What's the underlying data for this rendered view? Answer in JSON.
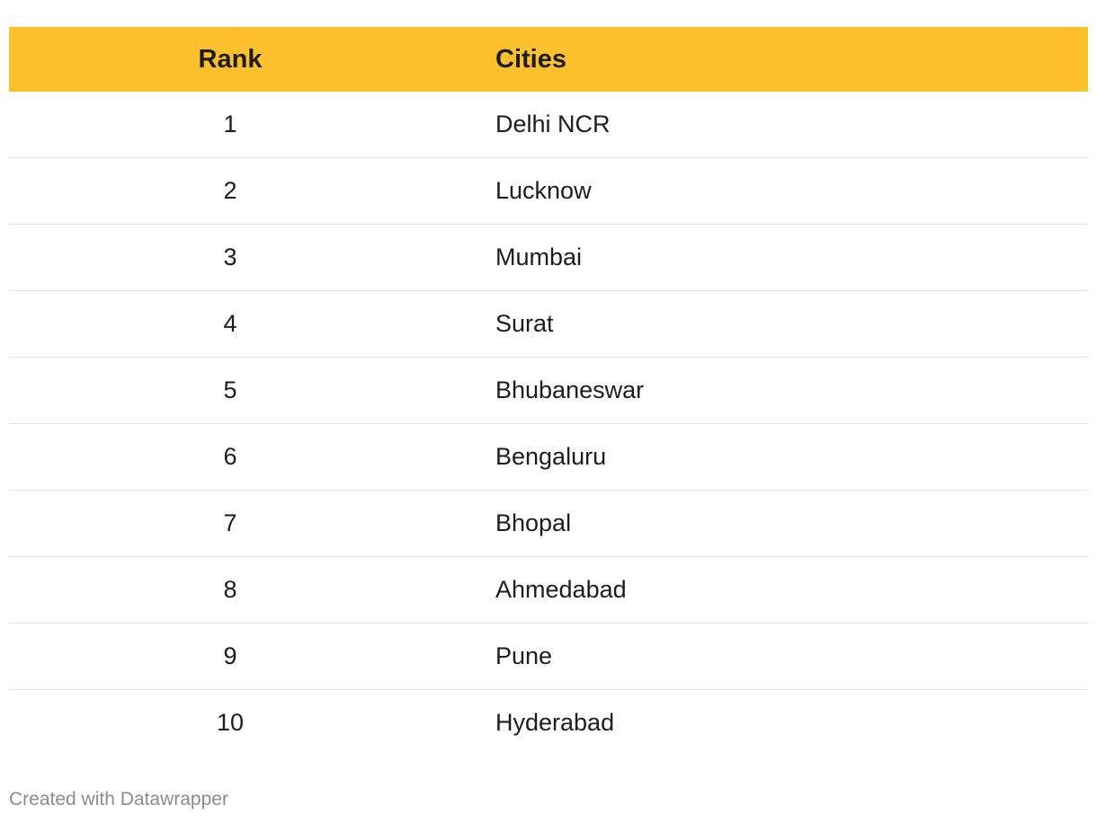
{
  "chart_data": {
    "type": "table",
    "columns": [
      "Rank",
      "Cities"
    ],
    "rows": [
      {
        "rank": "1",
        "city": "Delhi NCR"
      },
      {
        "rank": "2",
        "city": "Lucknow"
      },
      {
        "rank": "3",
        "city": "Mumbai"
      },
      {
        "rank": "4",
        "city": "Surat"
      },
      {
        "rank": "5",
        "city": "Bhubaneswar"
      },
      {
        "rank": "6",
        "city": "Bengaluru"
      },
      {
        "rank": "7",
        "city": "Bhopal"
      },
      {
        "rank": "8",
        "city": "Ahmedabad"
      },
      {
        "rank": "9",
        "city": "Pune"
      },
      {
        "rank": "10",
        "city": "Hyderabad"
      }
    ]
  },
  "colors": {
    "header_background": "#fec02d",
    "row_divider": "#e3e3e3",
    "footer_text": "#8c8c8c"
  },
  "footer": {
    "credit": "Created with Datawrapper"
  }
}
